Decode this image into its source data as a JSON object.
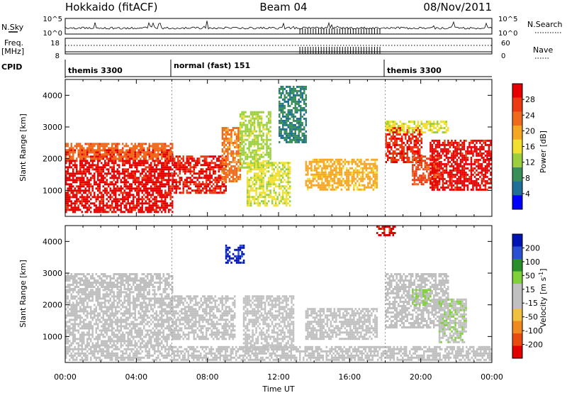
{
  "header": {
    "station": "Hokkaido (fitACF)",
    "beam": "Beam 04",
    "date": "08/Nov/2011"
  },
  "top_panels": {
    "nsky_label": "N.Sky",
    "nsky_ticks": [
      "10^5",
      "10^0"
    ],
    "nsearch_label": "N.Search",
    "nsearch_ticks": [
      "10^5",
      "10^0"
    ],
    "freq_label_1": "Freq.",
    "freq_label_2": "[MHz]",
    "freq_ticks": [
      "18",
      "8"
    ],
    "nave_label": "Nave",
    "nave_ticks": [
      "60",
      "0"
    ],
    "cpid_label": "CPID",
    "cpid_segments": [
      {
        "label": "themis 3300",
        "start_hour": 0
      },
      {
        "label": "normal (fast) 151",
        "start_hour": 6
      },
      {
        "label": "themis 3300",
        "start_hour": 18
      }
    ]
  },
  "x_axis": {
    "label": "Time UT",
    "ticks": [
      "00:00",
      "04:00",
      "08:00",
      "12:00",
      "16:00",
      "20:00",
      "00:00"
    ]
  },
  "colors": {
    "power_scale": [
      "#0000ff",
      "#1f6f99",
      "#3a8f58",
      "#9bcf3e",
      "#f2e030",
      "#f5a623",
      "#ef6a1c",
      "#ec3a12",
      "#e60000"
    ],
    "velocity_scale": [
      "#0014b4",
      "#2a4fd2",
      "#2a8f2a",
      "#7fd03a",
      "#c0c0c0",
      "#c0c0c0",
      "#f2c040",
      "#f08a20",
      "#ea4a10",
      "#e00000"
    ],
    "gridline": "#7f7f7f"
  },
  "chart_data": [
    {
      "type": "heatmap",
      "panel": "power",
      "x_unit": "hours UT",
      "xlim": [
        0,
        24
      ],
      "ylabel": "Slant Range [km]",
      "ylim": [
        180,
        4500
      ],
      "y_ticks": [
        1000,
        2000,
        3000,
        4000
      ],
      "colorbar_label": "Power [dB]",
      "colorbar_ticks": [
        "28",
        "24",
        "20",
        "16",
        "12",
        "8",
        "4"
      ],
      "colorbar_range": [
        0,
        30
      ],
      "regions": [
        {
          "x": [
            0.0,
            6.0
          ],
          "y": [
            350,
            2300
          ],
          "value": 28
        },
        {
          "x": [
            0.0,
            6.0
          ],
          "y": [
            2000,
            2500
          ],
          "value": 22
        },
        {
          "x": [
            6.0,
            9.0
          ],
          "y": [
            900,
            2100
          ],
          "value": 27
        },
        {
          "x": [
            8.8,
            9.8
          ],
          "y": [
            1300,
            3000
          ],
          "value": 21
        },
        {
          "x": [
            9.8,
            11.5
          ],
          "y": [
            1700,
            3500
          ],
          "value": 12
        },
        {
          "x": [
            10.2,
            12.6
          ],
          "y": [
            500,
            1900
          ],
          "value": 14
        },
        {
          "x": [
            12.0,
            13.5
          ],
          "y": [
            2500,
            4300
          ],
          "value": 7
        },
        {
          "x": [
            13.5,
            17.5
          ],
          "y": [
            1000,
            2000
          ],
          "value": 18
        },
        {
          "x": [
            18.0,
            20.0
          ],
          "y": [
            1900,
            3000
          ],
          "value": 26
        },
        {
          "x": [
            19.5,
            21.0
          ],
          "y": [
            1200,
            2100
          ],
          "value": 24
        },
        {
          "x": [
            20.5,
            24.0
          ],
          "y": [
            1000,
            2600
          ],
          "value": 28
        },
        {
          "x": [
            18.0,
            21.5
          ],
          "y": [
            2800,
            3200
          ],
          "value": 14
        }
      ]
    },
    {
      "type": "heatmap",
      "panel": "velocity",
      "x_unit": "hours UT",
      "xlim": [
        0,
        24
      ],
      "ylabel": "Slant Range [km]",
      "ylim": [
        180,
        4500
      ],
      "y_ticks": [
        1000,
        2000,
        3000,
        4000
      ],
      "colorbar_label": "Velocity [m s^-1]",
      "colorbar_ticks": [
        "200",
        "100",
        "50",
        "15",
        "-15",
        "-50",
        "-100",
        "-200"
      ],
      "colorbar_range": [
        -250,
        250
      ],
      "regions": [
        {
          "x": [
            0.0,
            6.0
          ],
          "y": [
            700,
            2500
          ],
          "value": 0
        },
        {
          "x": [
            0.0,
            6.0
          ],
          "y": [
            2500,
            3000
          ],
          "value": 0
        },
        {
          "x": [
            6.0,
            9.5
          ],
          "y": [
            900,
            2300
          ],
          "value": 0
        },
        {
          "x": [
            9.0,
            10.0
          ],
          "y": [
            3300,
            3900
          ],
          "value": 220
        },
        {
          "x": [
            10.0,
            12.8
          ],
          "y": [
            600,
            2300
          ],
          "value": 0
        },
        {
          "x": [
            13.5,
            17.5
          ],
          "y": [
            900,
            1900
          ],
          "value": 0
        },
        {
          "x": [
            17.5,
            18.5
          ],
          "y": [
            4200,
            4500
          ],
          "value": -220
        },
        {
          "x": [
            18.0,
            21.5
          ],
          "y": [
            1300,
            3000
          ],
          "value": 0
        },
        {
          "x": [
            21.0,
            22.5
          ],
          "y": [
            800,
            2200
          ],
          "value": 40
        },
        {
          "x": [
            19.5,
            20.5
          ],
          "y": [
            2000,
            2500
          ],
          "value": 60
        },
        {
          "x": [
            0.0,
            24.0
          ],
          "y": [
            250,
            700
          ],
          "value": 0
        }
      ]
    }
  ]
}
